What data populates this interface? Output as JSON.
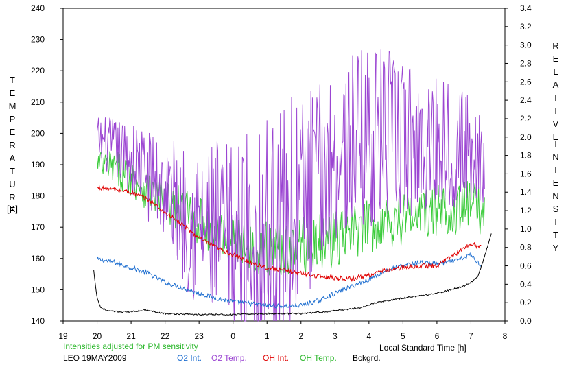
{
  "chart_data": {
    "type": "line",
    "title": "",
    "left_axis": {
      "label_letters": [
        "T",
        "E",
        "M",
        "P",
        "E",
        "R",
        "A",
        "T",
        "U",
        "R",
        "E"
      ],
      "unit": "[K]",
      "ylim": [
        140,
        240
      ],
      "ticks": [
        "140",
        "150",
        "160",
        "170",
        "180",
        "190",
        "200",
        "210",
        "220",
        "230",
        "240"
      ]
    },
    "right_axis": {
      "label_word1": [
        "R",
        "E",
        "L",
        "A",
        "T",
        "I",
        "V",
        "E"
      ],
      "label_word2": [
        "I",
        "N",
        "T",
        "E",
        "N",
        "S",
        "I",
        "T",
        "Y"
      ],
      "ylim": [
        0.0,
        3.4
      ],
      "ticks": [
        "0.0",
        "0.2",
        "0.4",
        "0.6",
        "0.8",
        "1.0",
        "1.2",
        "1.4",
        "1.6",
        "1.8",
        "2.0",
        "2.2",
        "2.4",
        "2.6",
        "2.8",
        "3.0",
        "3.2",
        "3.4"
      ]
    },
    "x_axis": {
      "label": "Local Standard Time [h]",
      "xlim": [
        19,
        32
      ],
      "ticks": [
        "19",
        "20",
        "21",
        "22",
        "23",
        "0",
        "1",
        "2",
        "3",
        "4",
        "5",
        "6",
        "7",
        "8"
      ]
    },
    "note": "Intensities adjusted for PM sensitivity",
    "station": "LEO 19MAY2009",
    "series": [
      {
        "name": "O2 Int.",
        "color": "#1f6fd0",
        "axis": "right",
        "x": [
          20.0,
          20.5,
          21.0,
          21.5,
          22.0,
          22.5,
          23.0,
          23.5,
          24.0,
          24.5,
          25.0,
          25.5,
          26.0,
          26.5,
          27.0,
          27.5,
          28.0,
          28.5,
          29.0,
          29.5,
          30.0,
          30.6,
          31.0,
          31.3
        ],
        "y": [
          0.67,
          0.64,
          0.58,
          0.52,
          0.42,
          0.36,
          0.3,
          0.25,
          0.21,
          0.19,
          0.17,
          0.16,
          0.17,
          0.22,
          0.3,
          0.38,
          0.45,
          0.55,
          0.6,
          0.64,
          0.62,
          0.66,
          0.72,
          0.6
        ]
      },
      {
        "name": "O2 Temp.",
        "color": "#9b45d2",
        "axis": "left",
        "x": [
          20.0,
          20.5,
          21.0,
          21.5,
          22.0,
          22.5,
          23.0,
          23.5,
          24.0,
          24.5,
          25.0,
          25.5,
          26.0,
          26.5,
          27.0,
          27.5,
          28.0,
          28.5,
          29.0,
          29.5,
          30.0,
          30.5,
          31.0,
          31.4
        ],
        "y": [
          198,
          195,
          192,
          187,
          182,
          175,
          170,
          166,
          165,
          166,
          168,
          172,
          178,
          186,
          192,
          197,
          200,
          199,
          198,
          197,
          198,
          196,
          195,
          193
        ],
        "noise": [
          8,
          10,
          12,
          15,
          18,
          22,
          28,
          32,
          34,
          36,
          38,
          38,
          36,
          30,
          28,
          28,
          30,
          28,
          26,
          24,
          22,
          20,
          18,
          16
        ]
      },
      {
        "name": "OH Int.",
        "color": "#e00000",
        "axis": "right",
        "x": [
          20.0,
          20.5,
          21.0,
          21.5,
          22.0,
          22.5,
          23.0,
          23.5,
          24.0,
          24.5,
          25.0,
          25.5,
          26.0,
          26.5,
          27.0,
          27.5,
          28.0,
          28.5,
          29.0,
          29.5,
          30.0,
          30.5,
          31.0,
          31.3
        ],
        "y": [
          1.45,
          1.43,
          1.4,
          1.32,
          1.18,
          1.05,
          0.9,
          0.8,
          0.72,
          0.64,
          0.58,
          0.55,
          0.52,
          0.49,
          0.47,
          0.46,
          0.5,
          0.55,
          0.58,
          0.6,
          0.6,
          0.72,
          0.84,
          0.8
        ]
      },
      {
        "name": "OH Temp.",
        "color": "#3ccc3c",
        "axis": "left",
        "x": [
          20.0,
          20.5,
          21.0,
          21.5,
          22.0,
          22.5,
          23.0,
          23.5,
          24.0,
          24.5,
          25.0,
          25.5,
          26.0,
          26.5,
          27.0,
          27.5,
          28.0,
          28.5,
          29.0,
          29.5,
          30.0,
          30.5,
          31.0,
          31.4
        ],
        "y": [
          190,
          189,
          186,
          182,
          178,
          175,
          172,
          168,
          166,
          164,
          163,
          163,
          164,
          165,
          166,
          168,
          170,
          172,
          173,
          174,
          175,
          176,
          177,
          175
        ],
        "noise": [
          5,
          6,
          6,
          7,
          7,
          8,
          8,
          8,
          8,
          8,
          9,
          9,
          9,
          9,
          9,
          9,
          9,
          9,
          9,
          9,
          9,
          9,
          8,
          8
        ]
      },
      {
        "name": "Bckgrd.",
        "color": "#000000",
        "axis": "right",
        "x": [
          19.9,
          20.0,
          20.1,
          20.3,
          20.6,
          21.0,
          21.4,
          22.0,
          23.0,
          24.0,
          25.0,
          26.0,
          27.0,
          27.8,
          28.2,
          29.0,
          30.0,
          30.8,
          31.0,
          31.2,
          31.4,
          31.6
        ],
        "y": [
          0.55,
          0.25,
          0.15,
          0.11,
          0.1,
          0.1,
          0.12,
          0.08,
          0.07,
          0.07,
          0.08,
          0.08,
          0.11,
          0.15,
          0.2,
          0.25,
          0.3,
          0.38,
          0.42,
          0.48,
          0.7,
          0.95
        ]
      }
    ]
  }
}
